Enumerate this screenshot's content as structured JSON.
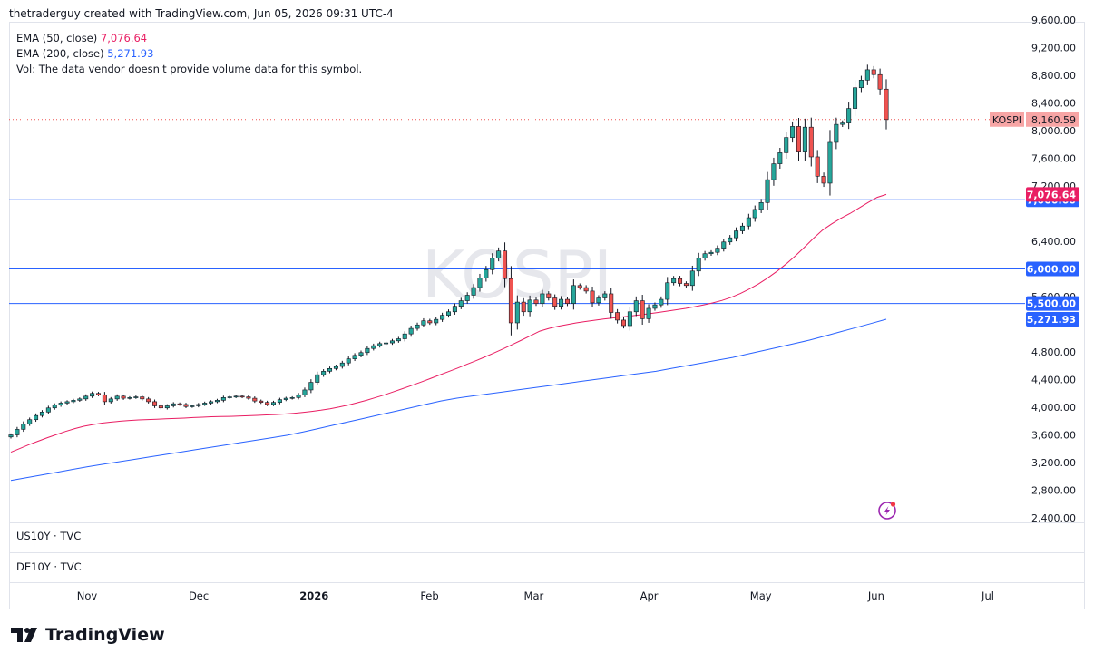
{
  "header": {
    "caption": "thetraderguy created with TradingView.com, Jun 05, 2026 09:31 UTC-4"
  },
  "legend": {
    "ema50_label": "EMA (50, close)",
    "ema50_value": "7,076.64",
    "ema200_label": "EMA (200, close)",
    "ema200_value": "5,271.93",
    "vol_text": "Vol: The data vendor doesn't provide volume data for this symbol."
  },
  "watermark": "KOSPI",
  "panes": {
    "us10y": "US10Y · TVC",
    "de10y": "DE10Y · TVC"
  },
  "footer": {
    "brand": "TradingView"
  },
  "colors": {
    "up": "#26a69a",
    "down": "#ef5350",
    "ema50": "#e91e63",
    "ema200": "#2962ff",
    "hline": "#2962ff",
    "last_price_bg": "#f7a5a5"
  },
  "chart_data": {
    "type": "candlestick",
    "symbol": "KOSPI",
    "y_ticks": [
      "9,600.00",
      "9,200.00",
      "8,800.00",
      "8,400.00",
      "8,000.00",
      "7,600.00",
      "7,200.00",
      "6,400.00",
      "5,600.00",
      "4,800.00",
      "4,400.00",
      "4,000.00",
      "3,600.00",
      "3,200.00",
      "2,800.00",
      "2,400.00"
    ],
    "y_tick_values": [
      9600,
      9200,
      8800,
      8400,
      8000,
      7600,
      7200,
      6400,
      5600,
      4800,
      4400,
      4000,
      3600,
      3200,
      2800,
      2400
    ],
    "ylim": [
      2400,
      9600
    ],
    "x_ticks": [
      {
        "label": "Nov",
        "date": "2025-11-01"
      },
      {
        "label": "Dec",
        "date": "2025-12-01"
      },
      {
        "label": "2026",
        "date": "2026-01-01"
      },
      {
        "label": "Feb",
        "date": "2026-02-01"
      },
      {
        "label": "Mar",
        "date": "2026-03-01"
      },
      {
        "label": "Apr",
        "date": "2026-04-01"
      },
      {
        "label": "May",
        "date": "2026-05-01"
      },
      {
        "label": "Jun",
        "date": "2026-06-01"
      },
      {
        "label": "Jul",
        "date": "2026-07-01"
      }
    ],
    "horizontal_levels": [
      {
        "value": 7000,
        "label": "7,000.00"
      },
      {
        "value": 6000,
        "label": "6,000.00"
      },
      {
        "value": 5500,
        "label": "5,500.00"
      }
    ],
    "last_price": {
      "value": 8160.59,
      "label": "8,160.59",
      "symbol": "KOSPI"
    },
    "ema50_last": {
      "value": 7076.64,
      "label": "7,076.64"
    },
    "ema200_last": {
      "value": 5271.93,
      "label": "5,271.93"
    },
    "closes": [
      3600,
      3680,
      3760,
      3820,
      3880,
      3930,
      3990,
      4030,
      4060,
      4080,
      4100,
      4120,
      4160,
      4200,
      4180,
      4080,
      4120,
      4160,
      4130,
      4140,
      4150,
      4120,
      4080,
      4020,
      3990,
      4020,
      4050,
      4040,
      4010,
      4020,
      4040,
      4060,
      4080,
      4100,
      4140,
      4150,
      4160,
      4150,
      4130,
      4090,
      4070,
      4040,
      4070,
      4110,
      4130,
      4140,
      4180,
      4250,
      4360,
      4470,
      4520,
      4560,
      4590,
      4640,
      4700,
      4750,
      4790,
      4850,
      4890,
      4920,
      4930,
      4960,
      4990,
      5060,
      5140,
      5190,
      5250,
      5220,
      5270,
      5330,
      5380,
      5460,
      5540,
      5620,
      5730,
      5870,
      5990,
      6160,
      6260,
      5860,
      5220,
      5520,
      5380,
      5550,
      5500,
      5640,
      5580,
      5460,
      5560,
      5500,
      5760,
      5730,
      5680,
      5510,
      5580,
      5640,
      5370,
      5260,
      5180,
      5380,
      5540,
      5280,
      5430,
      5480,
      5560,
      5800,
      5860,
      5790,
      5760,
      5970,
      6160,
      6220,
      6240,
      6300,
      6390,
      6450,
      6550,
      6620,
      6740,
      6860,
      6960,
      7290,
      7520,
      7680,
      7900,
      8060,
      7690,
      8050,
      7620,
      7340,
      7240,
      7830,
      8090,
      8110,
      8320,
      8620,
      8730,
      8880,
      8810,
      8600,
      8160
    ],
    "ema50": [
      3350,
      3405,
      3460,
      3510,
      3560,
      3605,
      3650,
      3690,
      3725,
      3750,
      3770,
      3785,
      3798,
      3808,
      3816,
      3822,
      3827,
      3832,
      3837,
      3843,
      3850,
      3856,
      3862,
      3866,
      3868,
      3872,
      3877,
      3882,
      3888,
      3894,
      3902,
      3912,
      3925,
      3940,
      3957,
      3978,
      4003,
      4032,
      4065,
      4100,
      4140,
      4180,
      4225,
      4270,
      4318,
      4365,
      4415,
      4465,
      4515,
      4567,
      4620,
      4673,
      4728,
      4785,
      4845,
      4907,
      4970,
      5035,
      5100,
      5140,
      5170,
      5195,
      5220,
      5240,
      5258,
      5275,
      5290,
      5305,
      5320,
      5336,
      5352,
      5370,
      5390,
      5410,
      5430,
      5455,
      5480,
      5510,
      5545,
      5590,
      5645,
      5710,
      5785,
      5870,
      5965,
      6070,
      6185,
      6310,
      6440,
      6560,
      6650,
      6730,
      6800,
      6880,
      6960,
      7035,
      7076.64
    ],
    "ema200": [
      2940,
      2980,
      3020,
      3060,
      3100,
      3140,
      3175,
      3210,
      3245,
      3280,
      3315,
      3350,
      3385,
      3420,
      3455,
      3490,
      3525,
      3560,
      3595,
      3640,
      3690,
      3740,
      3790,
      3840,
      3890,
      3940,
      3990,
      4040,
      4090,
      4130,
      4160,
      4190,
      4220,
      4250,
      4280,
      4310,
      4340,
      4370,
      4400,
      4430,
      4460,
      4490,
      4520,
      4560,
      4600,
      4640,
      4680,
      4720,
      4770,
      4820,
      4870,
      4920,
      4970,
      5030,
      5090,
      5150,
      5210,
      5271.93
    ]
  }
}
